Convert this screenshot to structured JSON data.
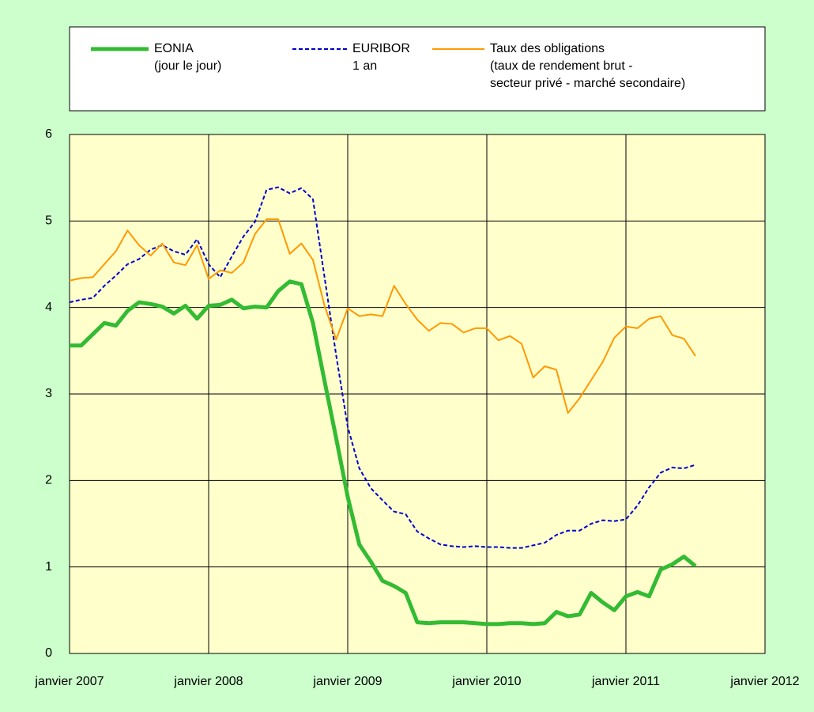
{
  "chart_data": {
    "type": "line",
    "x": [
      "2007-01",
      "2007-02",
      "2007-03",
      "2007-04",
      "2007-05",
      "2007-06",
      "2007-07",
      "2007-08",
      "2007-09",
      "2007-10",
      "2007-11",
      "2007-12",
      "2008-01",
      "2008-02",
      "2008-03",
      "2008-04",
      "2008-05",
      "2008-06",
      "2008-07",
      "2008-08",
      "2008-09",
      "2008-10",
      "2008-11",
      "2008-12",
      "2009-01",
      "2009-02",
      "2009-03",
      "2009-04",
      "2009-05",
      "2009-06",
      "2009-07",
      "2009-08",
      "2009-09",
      "2009-10",
      "2009-11",
      "2009-12",
      "2010-01",
      "2010-02",
      "2010-03",
      "2010-04",
      "2010-05",
      "2010-06",
      "2010-07",
      "2010-08",
      "2010-09",
      "2010-10",
      "2010-11",
      "2010-12",
      "2011-01",
      "2011-02",
      "2011-03",
      "2011-04",
      "2011-05",
      "2011-06",
      "2011-07"
    ],
    "series": [
      {
        "name": "EONIA\n(jour le jour)",
        "color": "#33bb33",
        "linewidth": 5,
        "linestyle": "solid",
        "values": [
          3.56,
          3.56,
          3.69,
          3.82,
          3.79,
          3.96,
          4.06,
          4.04,
          4.01,
          3.93,
          4.02,
          3.87,
          4.02,
          4.03,
          4.09,
          3.99,
          4.01,
          4.0,
          4.19,
          4.3,
          4.27,
          3.82,
          3.15,
          2.49,
          1.81,
          1.26,
          1.06,
          0.84,
          0.78,
          0.7,
          0.36,
          0.35,
          0.36,
          0.36,
          0.36,
          0.35,
          0.34,
          0.34,
          0.35,
          0.35,
          0.34,
          0.35,
          0.48,
          0.43,
          0.45,
          0.7,
          0.59,
          0.5,
          0.66,
          0.71,
          0.66,
          0.97,
          1.03,
          1.12,
          1.01
        ]
      },
      {
        "name": "EURIBOR\n1 an",
        "color": "#0000cc",
        "linewidth": 2,
        "linestyle": "dashed",
        "values": [
          4.06,
          4.09,
          4.11,
          4.25,
          4.37,
          4.5,
          4.56,
          4.67,
          4.72,
          4.65,
          4.61,
          4.79,
          4.5,
          4.35,
          4.59,
          4.82,
          4.99,
          5.36,
          5.39,
          5.32,
          5.38,
          5.25,
          4.35,
          3.45,
          2.62,
          2.14,
          1.91,
          1.77,
          1.64,
          1.61,
          1.41,
          1.33,
          1.26,
          1.24,
          1.23,
          1.24,
          1.23,
          1.23,
          1.22,
          1.22,
          1.25,
          1.28,
          1.37,
          1.42,
          1.42,
          1.5,
          1.54,
          1.53,
          1.55,
          1.71,
          1.92,
          2.09,
          2.15,
          2.14,
          2.18
        ]
      },
      {
        "name": "Taux des obligations\n(taux de rendement brut -\nsecteur privé - marché secondaire)",
        "color": "#ff9900",
        "linewidth": 2,
        "linestyle": "solid",
        "values": [
          4.31,
          4.34,
          4.35,
          4.5,
          4.65,
          4.89,
          4.72,
          4.6,
          4.74,
          4.52,
          4.49,
          4.72,
          4.33,
          4.43,
          4.4,
          4.52,
          4.85,
          5.02,
          5.02,
          4.62,
          4.74,
          4.55,
          4.02,
          3.63,
          3.99,
          3.9,
          3.92,
          3.9,
          4.25,
          4.04,
          3.86,
          3.73,
          3.82,
          3.81,
          3.71,
          3.76,
          3.76,
          3.62,
          3.67,
          3.58,
          3.19,
          3.32,
          3.28,
          2.78,
          2.95,
          3.16,
          3.37,
          3.65,
          3.78,
          3.76,
          3.87,
          3.9,
          3.68,
          3.64,
          3.44
        ]
      }
    ],
    "xlim": [
      "2007-01",
      "2012-01"
    ],
    "xticks": [
      {
        "value": "2007-01",
        "label": "janvier 2007"
      },
      {
        "value": "2008-01",
        "label": "janvier 2008"
      },
      {
        "value": "2009-01",
        "label": "janvier 2009"
      },
      {
        "value": "2010-01",
        "label": "janvier 2010"
      },
      {
        "value": "2011-01",
        "label": "janvier 2011"
      },
      {
        "value": "2012-01",
        "label": "janvier 2012"
      }
    ],
    "ylim": [
      0,
      6
    ],
    "yticks": [
      0,
      1,
      2,
      3,
      4,
      5,
      6
    ],
    "grid": true
  }
}
